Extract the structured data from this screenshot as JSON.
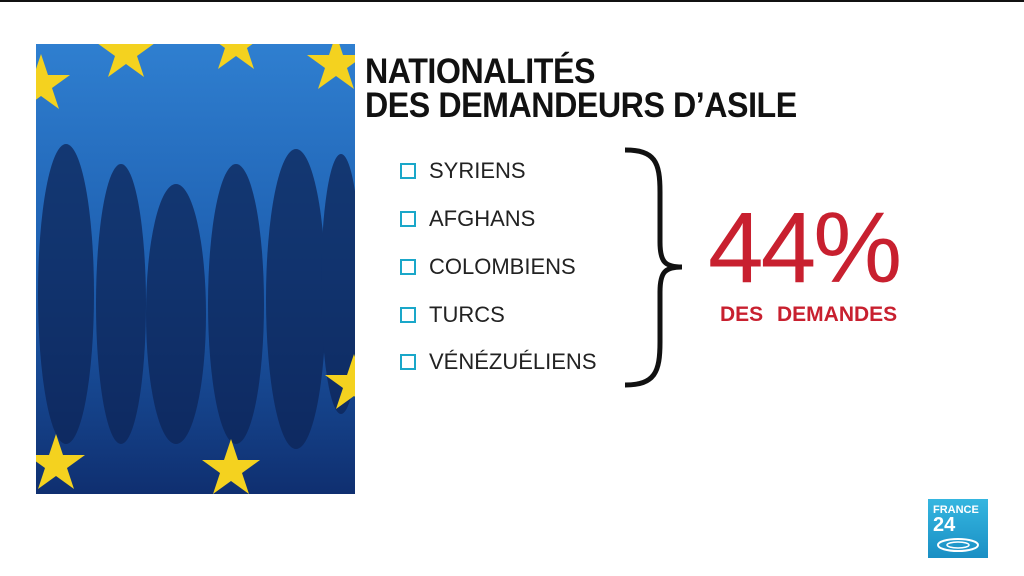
{
  "header": {
    "title_lines": [
      "NATIONALITÉS",
      "DES DEMANDEURS D’ASILE"
    ]
  },
  "list": {
    "items": [
      "SYRIENS",
      "AFGHANS",
      "COLOMBIENS",
      "TURCS",
      "VÉNÉZUÉLIENS"
    ]
  },
  "stat": {
    "value": "44%",
    "label": "DES DEMANDES"
  },
  "logo": {
    "brand": "FRANCE",
    "number": "24"
  }
}
